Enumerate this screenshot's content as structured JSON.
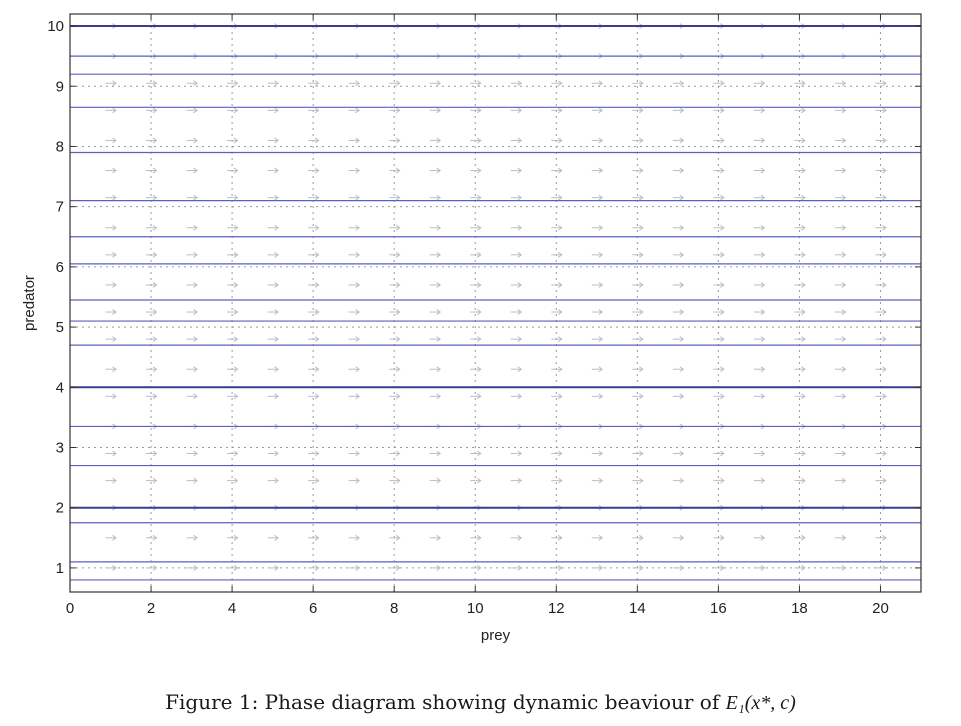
{
  "caption": {
    "text": "Figure 1: Phase diagram showing dynamic beaviour of",
    "math": "E₁(x*, c)"
  },
  "chart_data": {
    "type": "quiver",
    "title": "",
    "xlabel": "prey",
    "ylabel": "predator",
    "xlim": [
      0,
      21
    ],
    "ylim": [
      0.6,
      10.2
    ],
    "xticks": [
      0,
      2,
      4,
      6,
      8,
      10,
      12,
      14,
      16,
      18,
      20
    ],
    "yticks": [
      1,
      2,
      3,
      4,
      5,
      6,
      7,
      8,
      9,
      10
    ],
    "grid": true,
    "grid_style": "dotted",
    "colors": {
      "trajectory": "#5a5fc0",
      "strong_trajectory": "#3a3d8f",
      "arrow": "#b9bdc9",
      "grid": "#9a9a9a"
    },
    "horizontal_trajectories_y": [
      0.8,
      1.1,
      1.75,
      2.0,
      2.7,
      3.35,
      4.0,
      4.7,
      5.1,
      5.45,
      6.05,
      6.5,
      7.1,
      7.9,
      8.65,
      9.2,
      9.5,
      10.0
    ],
    "strong_trajectories_y": [
      2.0,
      4.0,
      10.0
    ],
    "arrow_field": {
      "x": [
        1,
        2,
        3,
        4,
        5,
        6,
        7,
        8,
        9,
        10,
        11,
        12,
        13,
        14,
        15,
        16,
        17,
        18,
        19,
        20
      ],
      "y": [
        1.0,
        1.5,
        2.0,
        2.45,
        2.9,
        3.35,
        3.85,
        4.3,
        4.8,
        5.25,
        5.7,
        6.2,
        6.65,
        7.15,
        7.6,
        8.1,
        8.6,
        9.05,
        9.5,
        10.0
      ],
      "direction": "right"
    }
  }
}
